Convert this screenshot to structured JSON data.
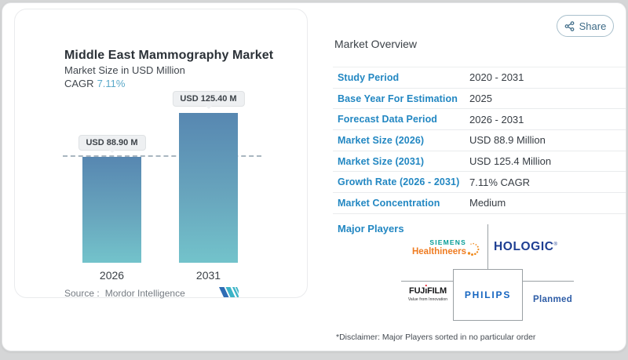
{
  "colors": {
    "accent_blue": "#2287c2",
    "cagr_teal": "#5ba9c9",
    "bar_gradient_top": "#5787b1",
    "bar_gradient_bottom": "#73c3cb",
    "dash_line": "#a9b6c0",
    "hologic_navy": "#1e3e92",
    "philips_blue": "#1565c0",
    "planmed_blue": "#2d5ca6",
    "siemens_teal": "#049c96",
    "healthineers_orange": "#ef7c22",
    "fujifilm_red": "#e60012"
  },
  "share": {
    "label": "Share",
    "icon": "share-nodes-icon"
  },
  "chart_card": {
    "title": "Middle East Mammography Market",
    "subtitle": "Market Size in USD Million",
    "cagr_label": "CAGR",
    "cagr_value": "7.11%",
    "source_label": "Source :",
    "source_value": "Mordor Intelligence",
    "brand_logo": "mordor-intelligence-mark"
  },
  "chart_data": {
    "type": "bar",
    "title": "Middle East Mammography Market",
    "ylabel": "Market Size (USD Million)",
    "categories": [
      "2026",
      "2031"
    ],
    "values": [
      88.9,
      125.4
    ],
    "bar_labels": [
      "USD 88.90 M",
      "USD 125.40 M"
    ],
    "cagr_percent": 7.11,
    "reference_line": 88.9,
    "grid": false,
    "legend": false
  },
  "overview": {
    "title": "Market Overview",
    "rows": [
      {
        "label": "Study Period",
        "value": "2020 - 2031"
      },
      {
        "label": "Base Year For Estimation",
        "value": "2025"
      },
      {
        "label": "Forecast Data Period",
        "value": "2026 - 2031"
      },
      {
        "label": "Market Size (2026)",
        "value": "USD 88.9 Million"
      },
      {
        "label": "Market Size (2031)",
        "value": "USD 125.4 Million"
      },
      {
        "label": "Growth Rate (2026 - 2031)",
        "value": "7.11% CAGR"
      },
      {
        "label": "Market Concentration",
        "value": "Medium"
      }
    ],
    "major_players_label": "Major Players",
    "disclaimer": "*Disclaimer: Major Players sorted in no particular order"
  },
  "players": {
    "siemens_line1": "SIEMENS",
    "siemens_line2": "Healthineers",
    "hologic": "HOLOGIC",
    "hologic_reg": "®",
    "fujifilm_pre": "FUJ",
    "fujifilm_i": "ı",
    "fujifilm_post": "FILM",
    "fujifilm_full": "FUJIFILM",
    "fujifilm_tagline": "Value from Innovation",
    "philips": "PHILIPS",
    "planmed": "Planmed"
  }
}
